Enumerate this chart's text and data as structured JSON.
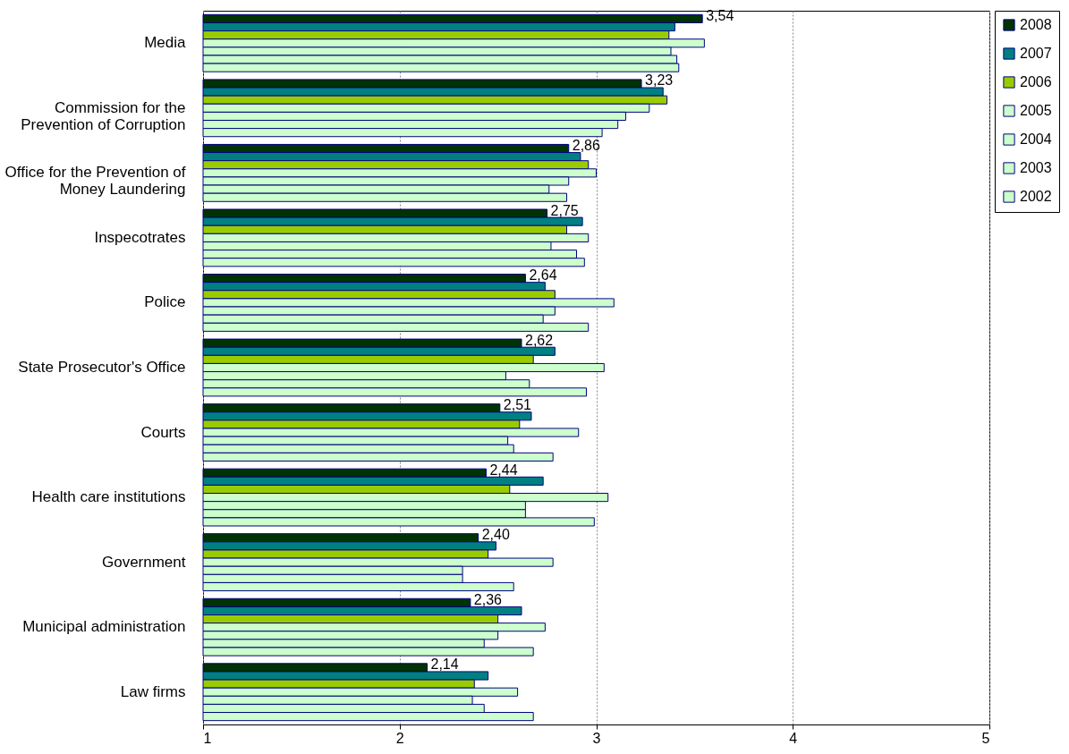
{
  "chart_data": {
    "type": "bar",
    "orientation": "horizontal",
    "categories": [
      "Media",
      "Commission for the Prevention of Corruption",
      "Office for the Prevention of Money Laundering",
      "Inspecotrates",
      "Police",
      "State Prosecutor's Office",
      "Courts",
      "Health care institutions",
      "Government",
      "Municipal administration",
      "Law firms"
    ],
    "series": [
      {
        "name": "2008",
        "color": "#003300",
        "values": [
          3.54,
          3.23,
          2.86,
          2.75,
          2.64,
          2.62,
          2.51,
          2.44,
          2.4,
          2.36,
          2.14
        ],
        "value_labels": [
          "3,54",
          "3,23",
          "2,86",
          "2,75",
          "2,64",
          "2,62",
          "2,51",
          "2,44",
          "2,40",
          "2,36",
          "2,14"
        ]
      },
      {
        "name": "2007",
        "color": "#008080",
        "values": [
          3.4,
          3.34,
          2.92,
          2.93,
          2.74,
          2.79,
          2.67,
          2.73,
          2.49,
          2.62,
          2.45
        ]
      },
      {
        "name": "2006",
        "color": "#99cc00",
        "values": [
          3.37,
          3.36,
          2.96,
          2.85,
          2.79,
          2.68,
          2.61,
          2.56,
          2.45,
          2.5,
          2.38
        ]
      },
      {
        "name": "2005",
        "color": "#ccffcc",
        "values": [
          3.55,
          3.27,
          3.0,
          2.96,
          3.09,
          3.04,
          2.91,
          3.06,
          2.78,
          2.74,
          2.6
        ]
      },
      {
        "name": "2004",
        "color": "#ccffcc",
        "values": [
          3.38,
          3.15,
          2.86,
          2.77,
          2.79,
          2.54,
          2.55,
          2.64,
          2.32,
          2.5,
          2.37
        ]
      },
      {
        "name": "2003",
        "color": "#ccffcc",
        "values": [
          3.41,
          3.11,
          2.76,
          2.9,
          2.73,
          2.66,
          2.58,
          2.64,
          2.32,
          2.43,
          2.43
        ]
      },
      {
        "name": "2002",
        "color": "#ccffcc",
        "values": [
          3.42,
          3.03,
          2.85,
          2.94,
          2.96,
          2.95,
          2.78,
          2.99,
          2.58,
          2.68,
          2.68
        ]
      }
    ],
    "xlim": [
      1,
      5
    ],
    "xticks": [
      1,
      2,
      3,
      4,
      5
    ],
    "grid": "x",
    "legend": "right"
  }
}
